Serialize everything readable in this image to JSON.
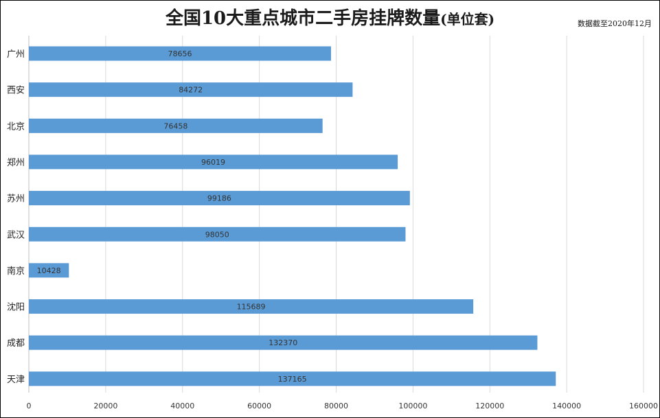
{
  "chart_data": {
    "type": "bar",
    "orientation": "horizontal",
    "title": "全国10大重点城市二手房挂牌数量",
    "title_suffix": "(单位套)",
    "note": "数据截至2020年12月",
    "categories": [
      "广州",
      "西安",
      "北京",
      "郑州",
      "苏州",
      "武汉",
      "南京",
      "沈阳",
      "成都",
      "天津"
    ],
    "values": [
      78656,
      84272,
      76458,
      96019,
      99186,
      98050,
      10428,
      115689,
      132370,
      137165
    ],
    "xlim": [
      0,
      160000
    ],
    "xticks": [
      0,
      20000,
      40000,
      60000,
      80000,
      100000,
      120000,
      140000,
      160000
    ],
    "grid": true,
    "bar_color": "#5B9BD5",
    "grid_color": "#D9D9D9"
  }
}
